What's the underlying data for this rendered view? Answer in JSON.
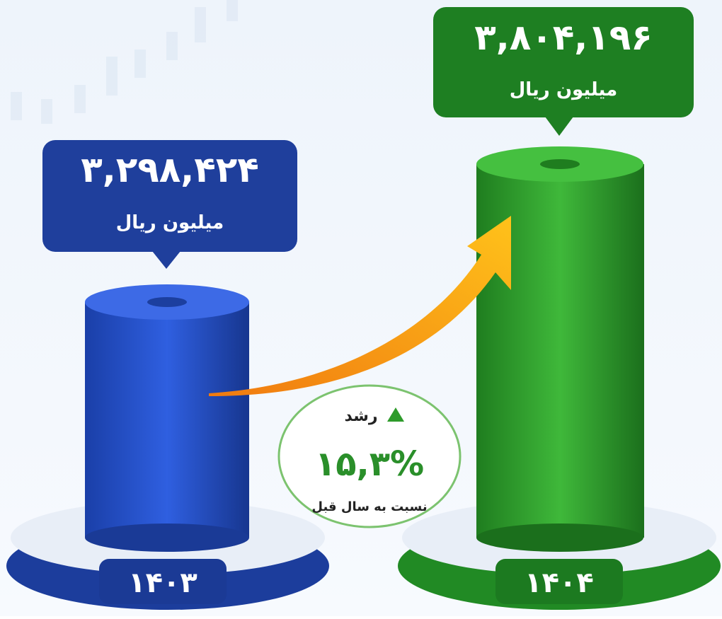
{
  "items": [
    {
      "value": "۳,۲۹۸,۴۲۴",
      "unit": "میلیون ریال",
      "year": "۱۴۰۳"
    },
    {
      "value": "۳,۸۰۴,۱۹۶",
      "unit": "میلیون ریال",
      "year": "۱۴۰۴"
    }
  ],
  "growth": {
    "label": "رشد",
    "value": "۱۵,۳%",
    "note": "نسبت به سال قبل"
  }
}
